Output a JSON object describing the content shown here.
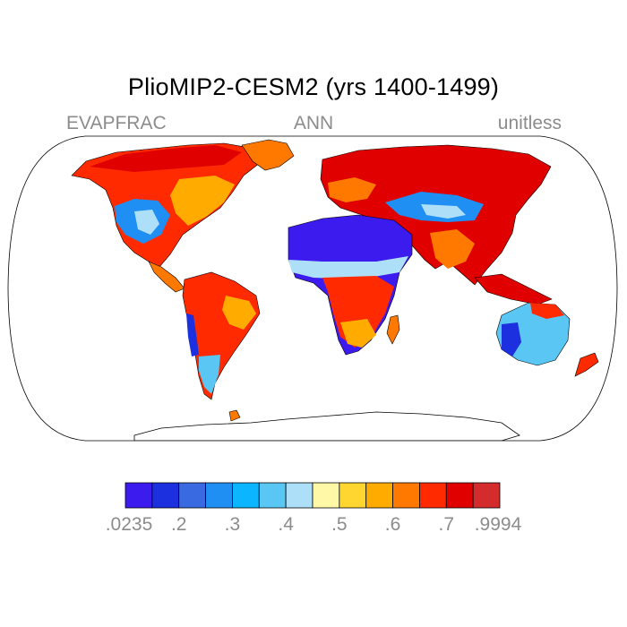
{
  "title": "PlioMIP2-CESM2 (yrs 1400-1499)",
  "left_label": "EVAPFRAC",
  "center_label": "ANN",
  "right_label": "unitless",
  "projection": "robinson",
  "colorbar": {
    "colors": [
      "#3c1bef",
      "#1c30e0",
      "#3a6ae2",
      "#208ff4",
      "#0cb5ff",
      "#5ac6f4",
      "#ade0f8",
      "#fff8a6",
      "#ffd630",
      "#ffab00",
      "#ff7800",
      "#ff2a00",
      "#e00000",
      "#d42c2c"
    ],
    "labels": [
      ".0235",
      ".2",
      ".3",
      ".4",
      ".5",
      ".6",
      ".7",
      ".9994"
    ]
  }
}
